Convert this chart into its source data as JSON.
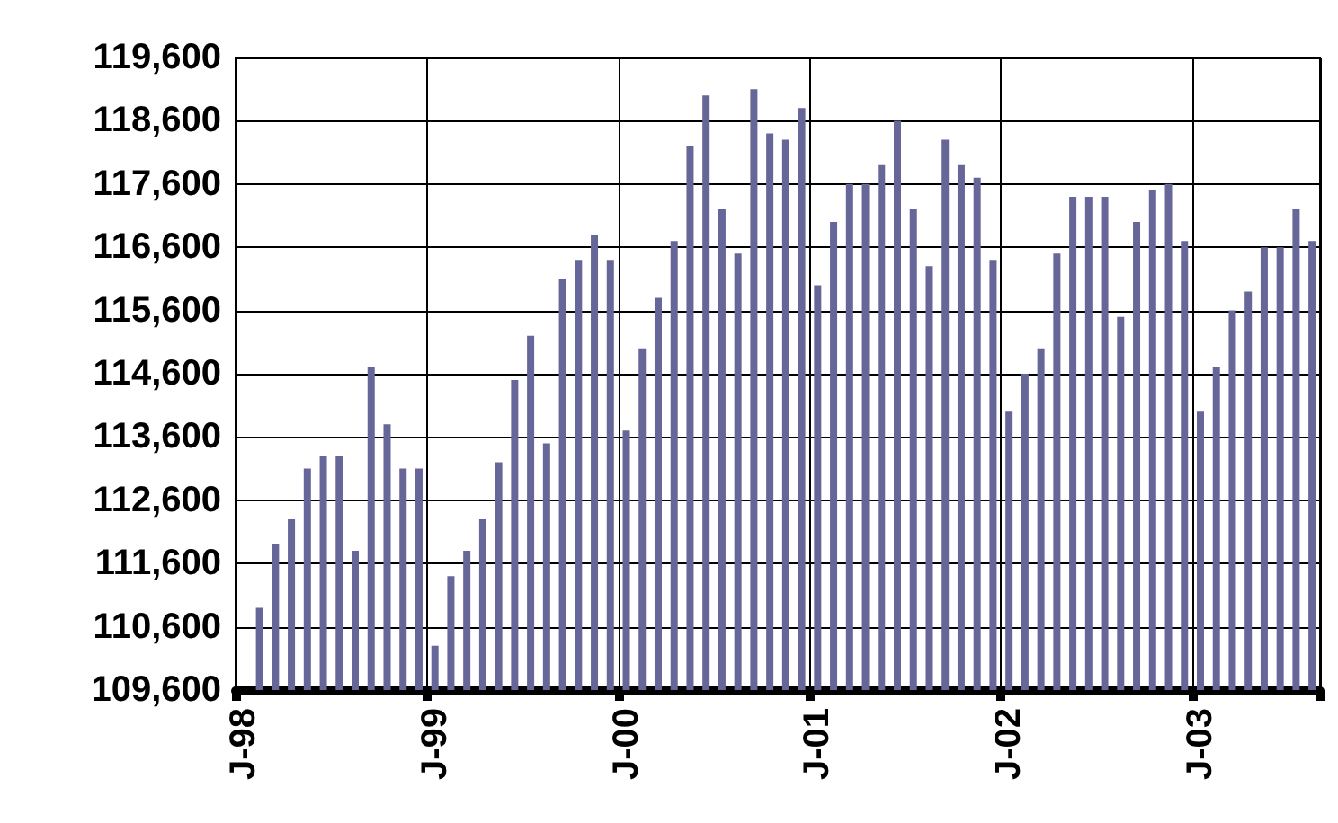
{
  "chart_data": {
    "type": "bar",
    "categories": [
      "J-98",
      null,
      null,
      null,
      null,
      null,
      null,
      null,
      null,
      null,
      null,
      null,
      "J-99",
      null,
      null,
      null,
      null,
      null,
      null,
      null,
      null,
      null,
      null,
      null,
      "J-00",
      null,
      null,
      null,
      null,
      null,
      null,
      null,
      null,
      null,
      null,
      null,
      "J-01",
      null,
      null,
      null,
      null,
      null,
      null,
      null,
      null,
      null,
      null,
      null,
      "J-02",
      null,
      null,
      null,
      null,
      null,
      null,
      null,
      null,
      null,
      null,
      null,
      "J-03",
      null,
      null,
      null,
      null,
      null,
      null,
      null
    ],
    "values": [
      null,
      110900,
      111900,
      112300,
      113100,
      113300,
      113300,
      111800,
      114700,
      113800,
      113100,
      113100,
      110300,
      111400,
      111800,
      112300,
      113200,
      114500,
      115200,
      113500,
      116100,
      116400,
      116800,
      116400,
      113700,
      115000,
      115800,
      116700,
      118200,
      119000,
      117200,
      116500,
      119100,
      118400,
      118300,
      118800,
      116000,
      117000,
      117600,
      117600,
      117900,
      118600,
      117200,
      116300,
      118300,
      117900,
      117700,
      116400,
      114000,
      114600,
      115000,
      116500,
      117400,
      117400,
      117400,
      115500,
      117000,
      117500,
      117600,
      116700,
      114000,
      114700,
      115600,
      115900,
      116600,
      116600,
      117200,
      116700
    ],
    "color": "#666699",
    "ylim": [
      109600,
      119600
    ],
    "yticks": [
      {
        "value": 109600,
        "label": "109,600"
      },
      {
        "value": 110600,
        "label": "110,600"
      },
      {
        "value": 111600,
        "label": "111,600"
      },
      {
        "value": 112600,
        "label": "112,600"
      },
      {
        "value": 113600,
        "label": "113,600"
      },
      {
        "value": 114600,
        "label": "114,600"
      },
      {
        "value": 115600,
        "label": "115,600"
      },
      {
        "value": 116600,
        "label": "116,600"
      },
      {
        "value": 117600,
        "label": "117,600"
      },
      {
        "value": 118600,
        "label": "118,600"
      },
      {
        "value": 119600,
        "label": "119,600"
      }
    ],
    "grid": true
  }
}
